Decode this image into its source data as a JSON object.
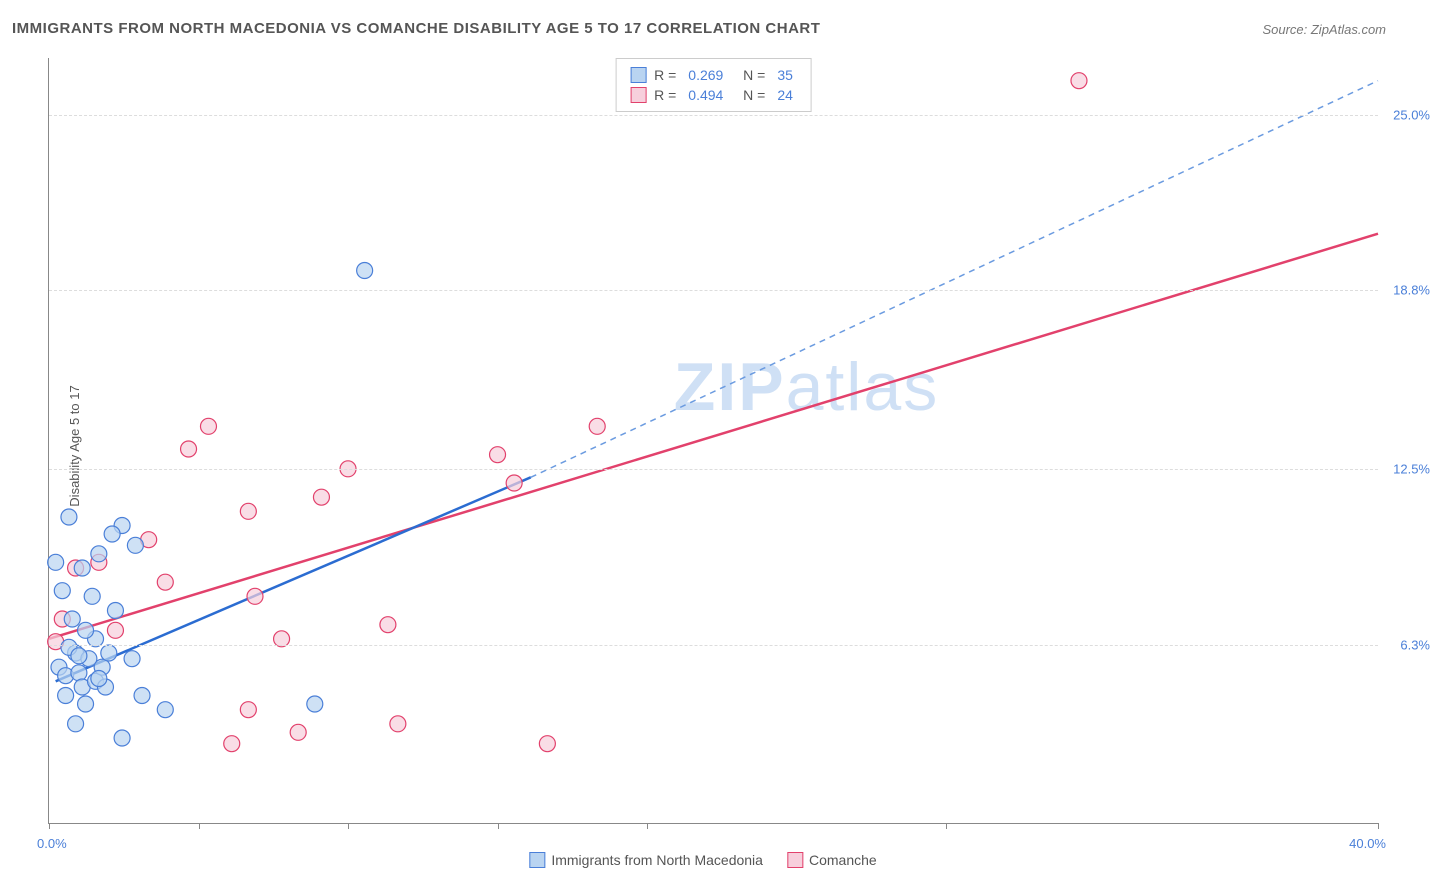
{
  "title": "IMMIGRANTS FROM NORTH MACEDONIA VS COMANCHE DISABILITY AGE 5 TO 17 CORRELATION CHART",
  "source": "Source: ZipAtlas.com",
  "watermark": "ZIPatlas",
  "chart": {
    "type": "scatter-correlation",
    "x_axis_title": "",
    "y_axis_title": "Disability Age 5 to 17",
    "xlim": [
      0,
      40
    ],
    "ylim": [
      0,
      27
    ],
    "x_labels": {
      "min": "0.0%",
      "max": "40.0%"
    },
    "y_ticks": [
      {
        "value": 6.3,
        "label": "6.3%"
      },
      {
        "value": 12.5,
        "label": "12.5%"
      },
      {
        "value": 18.8,
        "label": "18.8%"
      },
      {
        "value": 25.0,
        "label": "25.0%"
      }
    ],
    "x_tick_positions": [
      0,
      4.5,
      9,
      13.5,
      18,
      27,
      40
    ],
    "background_color": "#ffffff",
    "grid_color": "#dddddd",
    "series": [
      {
        "name": "Immigrants from North Macedonia",
        "color_fill": "#b9d4f1",
        "color_stroke": "#4a7fd8",
        "marker_radius": 8,
        "line_style": "solid-then-dashed",
        "line_solid_color": "#2b6cd1",
        "line_dashed_color": "#6b9be0",
        "line_width": 2.5,
        "R": "0.269",
        "N": "35",
        "trend_start": {
          "x": 0.2,
          "y": 5.0
        },
        "trend_solid_end": {
          "x": 14.5,
          "y": 12.2
        },
        "trend_dashed_end": {
          "x": 40,
          "y": 26.2
        },
        "points": [
          {
            "x": 0.3,
            "y": 5.5
          },
          {
            "x": 0.5,
            "y": 5.2
          },
          {
            "x": 0.8,
            "y": 6.0
          },
          {
            "x": 0.9,
            "y": 5.3
          },
          {
            "x": 0.6,
            "y": 6.2
          },
          {
            "x": 1.2,
            "y": 5.8
          },
          {
            "x": 1.0,
            "y": 4.8
          },
          {
            "x": 1.4,
            "y": 5.0
          },
          {
            "x": 1.1,
            "y": 4.2
          },
          {
            "x": 1.6,
            "y": 5.5
          },
          {
            "x": 0.5,
            "y": 4.5
          },
          {
            "x": 0.7,
            "y": 7.2
          },
          {
            "x": 1.3,
            "y": 8.0
          },
          {
            "x": 1.8,
            "y": 6.0
          },
          {
            "x": 0.4,
            "y": 8.2
          },
          {
            "x": 1.0,
            "y": 9.0
          },
          {
            "x": 1.5,
            "y": 9.5
          },
          {
            "x": 0.2,
            "y": 9.2
          },
          {
            "x": 2.2,
            "y": 10.5
          },
          {
            "x": 2.5,
            "y": 5.8
          },
          {
            "x": 0.6,
            "y": 10.8
          },
          {
            "x": 1.9,
            "y": 10.2
          },
          {
            "x": 2.0,
            "y": 7.5
          },
          {
            "x": 2.8,
            "y": 4.5
          },
          {
            "x": 1.4,
            "y": 6.5
          },
          {
            "x": 3.5,
            "y": 4.0
          },
          {
            "x": 2.2,
            "y": 3.0
          },
          {
            "x": 0.8,
            "y": 3.5
          },
          {
            "x": 1.1,
            "y": 6.8
          },
          {
            "x": 2.6,
            "y": 9.8
          },
          {
            "x": 8.0,
            "y": 4.2
          },
          {
            "x": 9.5,
            "y": 19.5
          },
          {
            "x": 1.7,
            "y": 4.8
          },
          {
            "x": 0.9,
            "y": 5.9
          },
          {
            "x": 1.5,
            "y": 5.1
          }
        ]
      },
      {
        "name": "Comanche",
        "color_fill": "#f7cfdc",
        "color_stroke": "#e2416c",
        "marker_radius": 8,
        "line_style": "solid",
        "line_solid_color": "#e2416c",
        "line_width": 2.5,
        "R": "0.494",
        "N": "24",
        "trend_start": {
          "x": 0,
          "y": 6.5
        },
        "trend_end": {
          "x": 40,
          "y": 20.8
        },
        "points": [
          {
            "x": 0.2,
            "y": 6.4
          },
          {
            "x": 0.4,
            "y": 7.2
          },
          {
            "x": 0.8,
            "y": 9.0
          },
          {
            "x": 1.5,
            "y": 9.2
          },
          {
            "x": 3.0,
            "y": 10.0
          },
          {
            "x": 3.5,
            "y": 8.5
          },
          {
            "x": 6.2,
            "y": 8.0
          },
          {
            "x": 4.8,
            "y": 14.0
          },
          {
            "x": 4.2,
            "y": 13.2
          },
          {
            "x": 6.0,
            "y": 11.0
          },
          {
            "x": 7.5,
            "y": 3.2
          },
          {
            "x": 7.0,
            "y": 6.5
          },
          {
            "x": 8.2,
            "y": 11.5
          },
          {
            "x": 10.5,
            "y": 3.5
          },
          {
            "x": 10.2,
            "y": 7.0
          },
          {
            "x": 9.0,
            "y": 12.5
          },
          {
            "x": 6.0,
            "y": 4.0
          },
          {
            "x": 5.5,
            "y": 2.8
          },
          {
            "x": 15.0,
            "y": 2.8
          },
          {
            "x": 13.5,
            "y": 13.0
          },
          {
            "x": 14.0,
            "y": 12.0
          },
          {
            "x": 16.5,
            "y": 14.0
          },
          {
            "x": 31.0,
            "y": 26.2
          },
          {
            "x": 2.0,
            "y": 6.8
          }
        ]
      }
    ]
  },
  "bottom_legend": [
    {
      "label": "Immigrants from North Macedonia",
      "fill": "#b9d4f1",
      "stroke": "#4a7fd8"
    },
    {
      "label": "Comanche",
      "fill": "#f7cfdc",
      "stroke": "#e2416c"
    }
  ]
}
